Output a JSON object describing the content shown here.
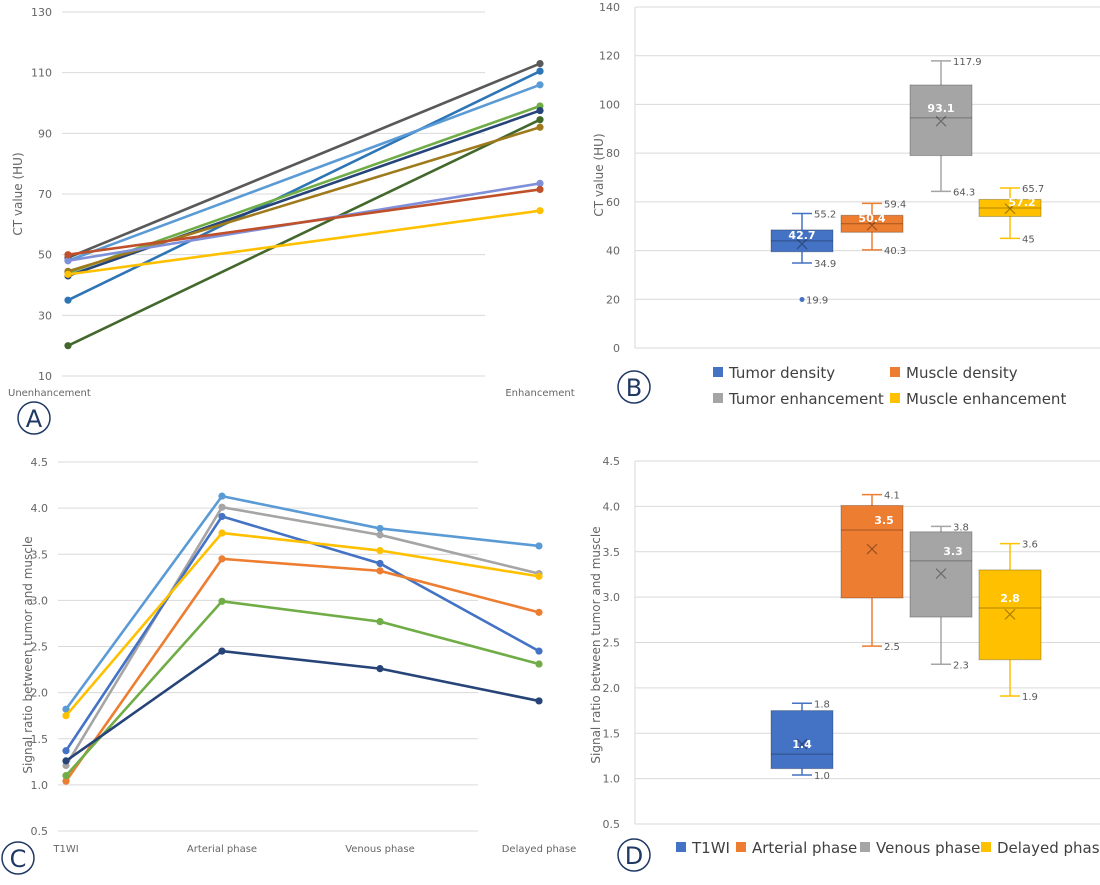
{
  "panel_labels": [
    "A",
    "B",
    "C",
    "D"
  ],
  "chart_data": [
    {
      "panel": "A",
      "type": "line",
      "ylabel": "CT value (HU)",
      "xlabel": "",
      "categories": [
        "Unenhancement",
        "Enhancement"
      ],
      "ylim": [
        10,
        130
      ],
      "yticks": [
        10,
        30,
        50,
        70,
        90,
        110,
        130
      ],
      "grid": true,
      "series": [
        {
          "color": "#595959",
          "values": [
            49,
            113
          ]
        },
        {
          "color": "#2E75B6",
          "values": [
            35,
            110.5
          ]
        },
        {
          "color": "#5B9BD5",
          "values": [
            48,
            106
          ]
        },
        {
          "color": "#70AD47",
          "values": [
            44,
            99
          ]
        },
        {
          "color": "#264478",
          "values": [
            43,
            97.5
          ]
        },
        {
          "color": "#43682B",
          "values": [
            20,
            94.5
          ]
        },
        {
          "color": "#9E7A1D",
          "values": [
            44.5,
            92
          ]
        },
        {
          "color": "#7F8FD9",
          "values": [
            48,
            73.5
          ]
        },
        {
          "color": "#C0502A",
          "values": [
            50,
            71.5
          ]
        },
        {
          "color": "#FFC000",
          "values": [
            43.5,
            64.5
          ]
        }
      ]
    },
    {
      "panel": "B",
      "type": "box",
      "ylabel": "CT value (HU)",
      "ylim": [
        0,
        140
      ],
      "yticks": [
        0,
        20,
        40,
        60,
        80,
        100,
        120,
        140
      ],
      "grid": true,
      "legend_position": "bottom",
      "series": [
        {
          "name": "Tumor density",
          "color": "#4472C4",
          "min": 34.9,
          "q1": 39.5,
          "median": 44,
          "q3": 48.5,
          "max": 55.2,
          "mean": 42.7,
          "outliers": [
            19.9
          ],
          "labels": {
            "max": "55.2",
            "min": "34.9",
            "mean": "42.7",
            "outliers": [
              "19.9"
            ]
          }
        },
        {
          "name": "Muscle density",
          "color": "#ED7D31",
          "min": 40.3,
          "q1": 47.5,
          "median": 51,
          "q3": 54.5,
          "max": 59.4,
          "mean": 50.4,
          "outliers": [],
          "labels": {
            "max": "59.4",
            "min": "40.3",
            "mean": "50.4",
            "outliers": []
          }
        },
        {
          "name": "Tumor enhancement",
          "color": "#A5A5A5",
          "min": 64.3,
          "q1": 79,
          "median": 94.5,
          "q3": 108,
          "max": 117.9,
          "mean": 93.1,
          "outliers": [],
          "labels": {
            "max": "117.9",
            "min": "64.3",
            "mean": "93.1",
            "outliers": []
          }
        },
        {
          "name": "Muscle enhancement",
          "color": "#FFC000",
          "min": 45,
          "q1": 54,
          "median": 57.5,
          "q3": 61,
          "max": 65.7,
          "mean": 57.2,
          "outliers": [],
          "labels": {
            "max": "65.7",
            "min": "45",
            "mean": "57.2",
            "outliers": []
          }
        }
      ]
    },
    {
      "panel": "C",
      "type": "line",
      "ylabel": "Signal ratio between tumor and muscle",
      "xlabel": "",
      "categories": [
        "T1WI",
        "Arterial phase",
        "Venous phase",
        "Delayed phase"
      ],
      "ylim": [
        0.5,
        4.5
      ],
      "yticks": [
        "0.5",
        "1.0",
        "1.5",
        "2.0",
        "2.5",
        "3.0",
        "3.5",
        "4.0",
        "4.5"
      ],
      "grid": true,
      "series": [
        {
          "color": "#5B9BD5",
          "values": [
            1.82,
            4.13,
            3.78,
            3.59
          ]
        },
        {
          "color": "#A5A5A5",
          "values": [
            1.21,
            4.01,
            3.71,
            3.29
          ]
        },
        {
          "color": "#4472C4",
          "values": [
            1.37,
            3.91,
            3.4,
            2.45
          ]
        },
        {
          "color": "#FFC000",
          "values": [
            1.75,
            3.73,
            3.54,
            3.26
          ]
        },
        {
          "color": "#ED7D31",
          "values": [
            1.04,
            3.45,
            3.32,
            2.87
          ]
        },
        {
          "color": "#70AD47",
          "values": [
            1.1,
            2.99,
            2.77,
            2.31
          ]
        },
        {
          "color": "#264478",
          "values": [
            1.26,
            2.45,
            2.26,
            1.91
          ]
        }
      ]
    },
    {
      "panel": "D",
      "type": "box",
      "ylabel": "Signal ratio between tumor and muscle",
      "ylim": [
        0.5,
        4.5
      ],
      "yticks": [
        "0.5",
        "1.0",
        "1.5",
        "2.0",
        "2.5",
        "3.0",
        "3.5",
        "4.0",
        "4.5"
      ],
      "grid": true,
      "legend_position": "bottom",
      "series": [
        {
          "name": "T1WI",
          "color": "#4472C4",
          "min": 1.04,
          "q1": 1.11,
          "median": 1.27,
          "q3": 1.75,
          "max": 1.83,
          "mean": 1.38,
          "outliers": [],
          "labels": {
            "max": "1.8",
            "min": "1.0",
            "mean": "1.4",
            "outliers": []
          }
        },
        {
          "name": "Arterial phase",
          "color": "#ED7D31",
          "min": 2.46,
          "q1": 2.99,
          "median": 3.74,
          "q3": 4.01,
          "max": 4.13,
          "mean": 3.53,
          "outliers": [],
          "labels": {
            "max": "4.1",
            "min": "2.5",
            "mean": "3.5",
            "outliers": []
          }
        },
        {
          "name": "Venous phase",
          "color": "#A5A5A5",
          "min": 2.26,
          "q1": 2.78,
          "median": 3.4,
          "q3": 3.72,
          "max": 3.78,
          "mean": 3.26,
          "outliers": [],
          "labels": {
            "max": "3.8",
            "min": "2.3",
            "mean": "3.3",
            "outliers": []
          }
        },
        {
          "name": "Delayed phase",
          "color": "#FFC000",
          "min": 1.91,
          "q1": 2.31,
          "median": 2.88,
          "q3": 3.3,
          "max": 3.59,
          "mean": 2.81,
          "outliers": [],
          "labels": {
            "max": "3.6",
            "min": "1.9",
            "mean": "2.8",
            "outliers": []
          }
        }
      ]
    }
  ]
}
